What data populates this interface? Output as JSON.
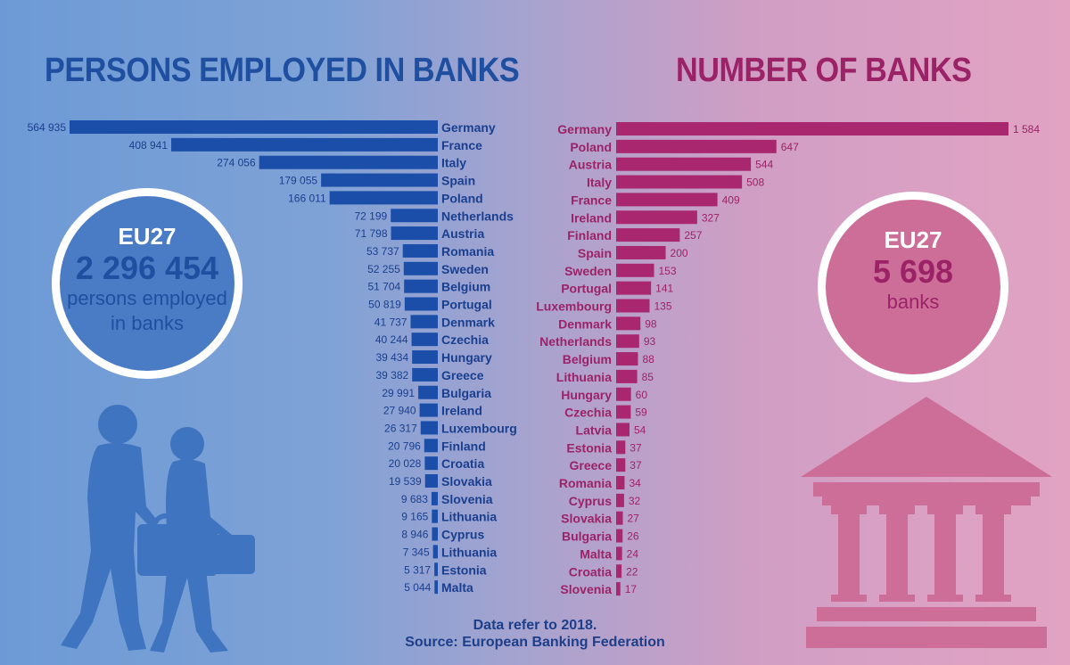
{
  "titles": {
    "left": "PERSONS EMPLOYED IN BANKS",
    "right": "NUMBER OF BANKS"
  },
  "circles": {
    "left": {
      "label": "EU27",
      "value": "2 296 454",
      "text_line1": "persons employed",
      "text_line2": "in banks"
    },
    "right": {
      "label": "EU27",
      "value": "5 698",
      "text": "banks"
    }
  },
  "footer": {
    "line1": "Data refer to 2018.",
    "line2": "Source: European Banking Federation"
  },
  "colors": {
    "left_bar": "#1a4ea8",
    "right_bar": "#a8276f",
    "left_text": "#1a3f8f",
    "right_text": "#9c2268"
  },
  "chart_data": [
    {
      "type": "bar",
      "title": "PERSONS EMPLOYED IN BANKS",
      "orientation": "horizontal",
      "categories": [
        "Germany",
        "France",
        "Italy",
        "Spain",
        "Poland",
        "Netherlands",
        "Austria",
        "Romania",
        "Sweden",
        "Belgium",
        "Portugal",
        "Denmark",
        "Czechia",
        "Hungary",
        "Greece",
        "Bulgaria",
        "Ireland",
        "Luxembourg",
        "Finland",
        "Croatia",
        "Slovakia",
        "Slovenia",
        "Lithuania",
        "Cyprus",
        "Lithuania",
        "Estonia",
        "Malta"
      ],
      "values": [
        564935,
        408941,
        274056,
        179055,
        166011,
        72199,
        71798,
        53737,
        52255,
        51704,
        50819,
        41737,
        40244,
        39434,
        39382,
        29991,
        27940,
        26317,
        20796,
        20028,
        19539,
        9683,
        9165,
        8946,
        7345,
        5317,
        5044
      ],
      "labels": [
        "564 935",
        "408 941",
        "274 056",
        "179 055",
        "166 011",
        "72 199",
        "71 798",
        "53 737",
        "52 255",
        "51 704",
        "50 819",
        "41 737",
        "40 244",
        "39 434",
        "39 382",
        "29 991",
        "27 940",
        "26 317",
        "20 796",
        "20 028",
        "19 539",
        "9 683",
        "9 165",
        "8 946",
        "7 345",
        "5 317",
        "5 044"
      ]
    },
    {
      "type": "bar",
      "title": "NUMBER OF BANKS",
      "orientation": "horizontal",
      "categories": [
        "Germany",
        "Poland",
        "Austria",
        "Italy",
        "France",
        "Ireland",
        "Finland",
        "Spain",
        "Sweden",
        "Portugal",
        "Luxembourg",
        "Denmark",
        "Netherlands",
        "Belgium",
        "Lithuania",
        "Hungary",
        "Czechia",
        "Latvia",
        "Estonia",
        "Greece",
        "Romania",
        "Cyprus",
        "Slovakia",
        "Bulgaria",
        "Malta",
        "Croatia",
        "Slovenia"
      ],
      "values": [
        1584,
        647,
        544,
        508,
        409,
        327,
        257,
        200,
        153,
        141,
        135,
        98,
        93,
        88,
        85,
        60,
        59,
        54,
        37,
        37,
        34,
        32,
        27,
        26,
        24,
        22,
        17
      ],
      "labels": [
        "1 584",
        "647",
        "544",
        "508",
        "409",
        "327",
        "257",
        "200",
        "153",
        "141",
        "135",
        "98",
        "93",
        "88",
        "85",
        "60",
        "59",
        "54",
        "37",
        "37",
        "34",
        "32",
        "27",
        "26",
        "24",
        "22",
        "17"
      ]
    }
  ]
}
